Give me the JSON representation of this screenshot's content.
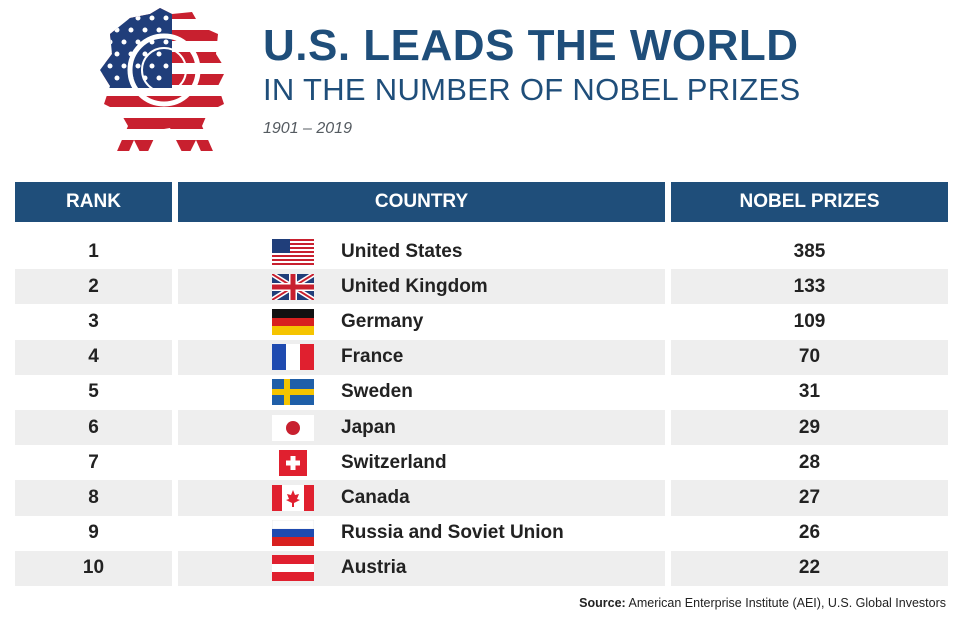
{
  "header": {
    "title": "U.S. LEADS THE WORLD",
    "subtitle": "IN THE NUMBER OF NOBEL PRIZES",
    "years": "1901 – 2019"
  },
  "table": {
    "columns": [
      "RANK",
      "COUNTRY",
      "NOBEL PRIZES"
    ],
    "rows": [
      {
        "rank": "1",
        "country": "United States",
        "prizes": "385",
        "flag": "us-flag-icon"
      },
      {
        "rank": "2",
        "country": "United Kingdom",
        "prizes": "133",
        "flag": "uk-flag-icon"
      },
      {
        "rank": "3",
        "country": "Germany",
        "prizes": "109",
        "flag": "germany-flag-icon"
      },
      {
        "rank": "4",
        "country": "France",
        "prizes": "70",
        "flag": "france-flag-icon"
      },
      {
        "rank": "5",
        "country": "Sweden",
        "prizes": "31",
        "flag": "sweden-flag-icon"
      },
      {
        "rank": "6",
        "country": "Japan",
        "prizes": "29",
        "flag": "japan-flag-icon"
      },
      {
        "rank": "7",
        "country": "Switzerland",
        "prizes": "28",
        "flag": "switzerland-flag-icon"
      },
      {
        "rank": "8",
        "country": "Canada",
        "prizes": "27",
        "flag": "canada-flag-icon"
      },
      {
        "rank": "9",
        "country": "Russia and Soviet Union",
        "prizes": "26",
        "flag": "russia-flag-icon"
      },
      {
        "rank": "10",
        "country": "Austria",
        "prizes": "22",
        "flag": "austria-flag-icon"
      }
    ]
  },
  "source": {
    "label": "Source:",
    "text": "American Enterprise Institute (AEI), U.S. Global Investors"
  },
  "colors": {
    "header_bg": "#1f4e7a",
    "title": "#1f4e7a",
    "row_shade": "#eeeeee"
  },
  "chart_data": {
    "type": "table",
    "columns": [
      "RANK",
      "COUNTRY",
      "NOBEL PRIZES"
    ],
    "categories": [
      "United States",
      "United Kingdom",
      "Germany",
      "France",
      "Sweden",
      "Japan",
      "Switzerland",
      "Canada",
      "Russia and Soviet Union",
      "Austria"
    ],
    "values": [
      385,
      133,
      109,
      70,
      31,
      29,
      28,
      27,
      26,
      22
    ],
    "title": "U.S. LEADS THE WORLD IN THE NUMBER OF NOBEL PRIZES",
    "subtitle": "1901 – 2019"
  }
}
